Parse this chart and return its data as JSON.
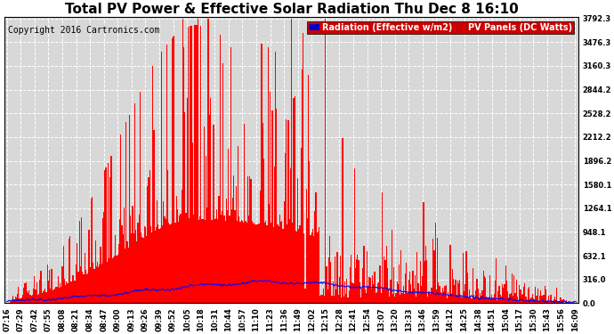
{
  "title": "Total PV Power & Effective Solar Radiation Thu Dec 8 16:10",
  "copyright": "Copyright 2016 Cartronics.com",
  "legend_radiation": "Radiation (Effective w/m2)",
  "legend_pv": "PV Panels (DC Watts)",
  "yticks": [
    0.0,
    316.0,
    632.1,
    948.1,
    1264.1,
    1580.1,
    1896.2,
    2212.2,
    2528.2,
    2844.2,
    3160.3,
    3476.3,
    3792.3
  ],
  "ymax": 3792.3,
  "ymin": 0.0,
  "background_color": "#ffffff",
  "plot_bg_color": "#d8d8d8",
  "grid_color": "#ffffff",
  "bar_color": "#ff0000",
  "line_color": "#0000ff",
  "title_color": "#000000",
  "title_fontsize": 11,
  "tick_fontsize": 6,
  "copyright_fontsize": 7,
  "legend_fontsize": 7
}
